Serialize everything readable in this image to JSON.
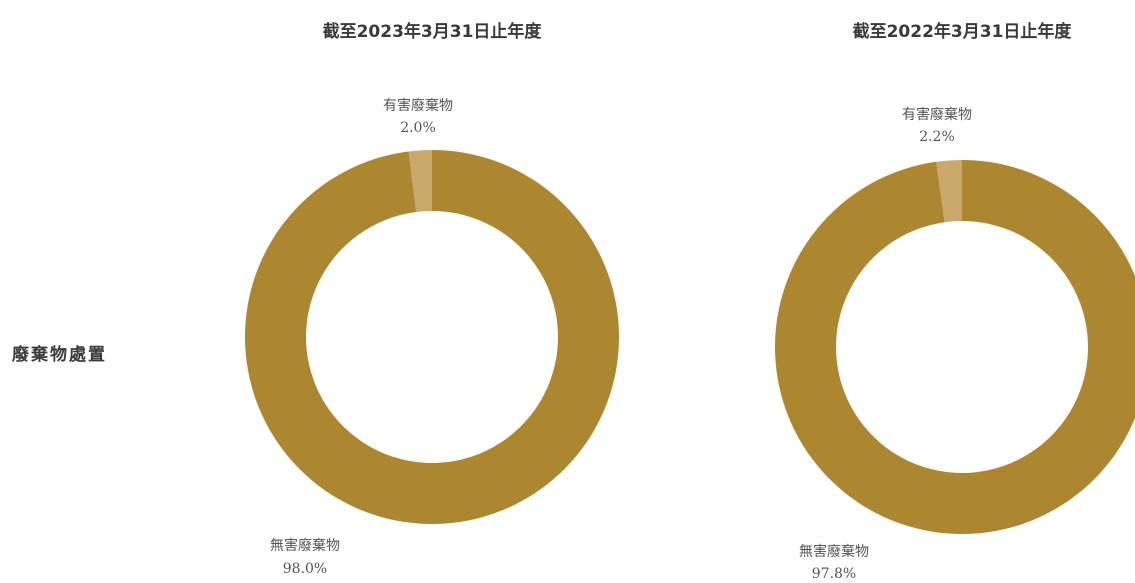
{
  "section_label": "廢棄物處置",
  "colors": {
    "non_hazardous": "#ad872f",
    "hazardous": "#c9a86b",
    "background": "#ffffff",
    "text": "#3a3a3a",
    "label_text": "#555555"
  },
  "chart_data": [
    {
      "type": "pie",
      "title": "截至2023年3月31日止年度",
      "slices": [
        {
          "label": "有害廢棄物",
          "value": 2.0,
          "value_label": "2.0%"
        },
        {
          "label": "無害廢棄物",
          "value": 98.0,
          "value_label": "98.0%"
        }
      ]
    },
    {
      "type": "pie",
      "title": "截至2022年3月31日止年度",
      "slices": [
        {
          "label": "有害廢棄物",
          "value": 2.2,
          "value_label": "2.2%"
        },
        {
          "label": "無害廢棄物",
          "value": 97.8,
          "value_label": "97.8%"
        }
      ]
    }
  ]
}
